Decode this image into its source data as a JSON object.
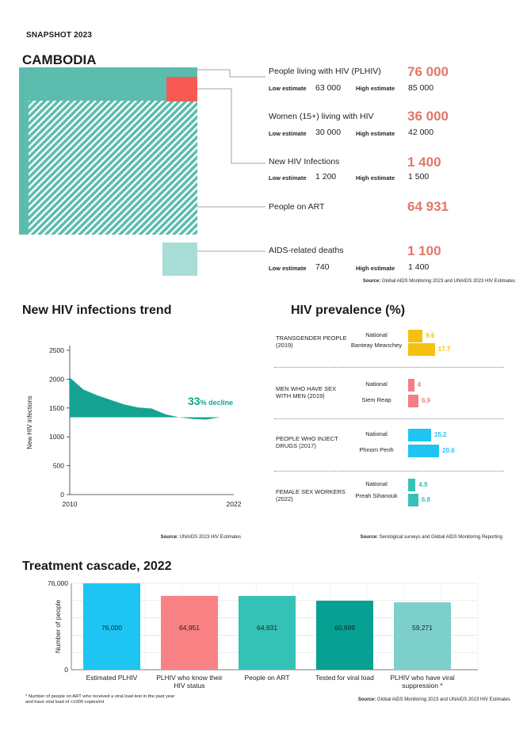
{
  "header": {
    "snapshot": "SNAPSHOT 2023",
    "country": "CAMBODIA"
  },
  "colors": {
    "teal": "#5cbcad",
    "teal_light": "#a7ddd5",
    "red_square": "#f75a55",
    "accent": "#e3776a",
    "yellow": "#f6c010",
    "pink": "#f57c84",
    "cyan": "#1ec5f2",
    "teal_mid": "#35c2b6",
    "cascade_pink": "#f78183",
    "cascade_dark": "#07a193",
    "cascade_light": "#7ccfcb"
  },
  "stats": {
    "plhiv": {
      "label": "People living with HIV (PLHIV)",
      "value": "76 000",
      "low_label": "Low estimate",
      "low": "63 000",
      "high_label": "High estimate",
      "high": "85 000"
    },
    "women": {
      "label": "Women (15+) living with HIV",
      "value": "36 000",
      "low_label": "Low estimate",
      "low": "30 000",
      "high_label": "High estimate",
      "high": "42 000"
    },
    "new_infections": {
      "label": "New HIV Infections",
      "value": "1 400",
      "low_label": "Low estimate",
      "low": "1 200",
      "high_label": "High estimate",
      "high": "1 500"
    },
    "art": {
      "label": "People on ART",
      "value": "64 931"
    },
    "deaths": {
      "label": "AIDS-related deaths",
      "value": "1 100",
      "low_label": "Low estimate",
      "low": "740",
      "high_label": "High estimate",
      "high": "1 400"
    },
    "source_label": "Source:",
    "source_text": "Global AIDS Monitoring 2023 and UNAIDS 2023 HIV Estimates"
  },
  "trend": {
    "title": "New HIV infections trend",
    "decline_value": "33",
    "decline_text": "% decline",
    "source_label": "Source:",
    "source_text": "UNAIDS 2023 HIV Estimates"
  },
  "prevalence": {
    "title": "HIV prevalence (%)",
    "source_label": "Source:",
    "source_text": "Serological surveys and Global AIDS Monitoring Reporting",
    "groups": [
      {
        "name": "TRANSGENDER PEOPLE (2019)",
        "rows": [
          {
            "sub": "National",
            "value": 9.6,
            "label": "9.6"
          },
          {
            "sub": "Banteay Meanchey",
            "value": 17.7,
            "label": "17.7"
          }
        ]
      },
      {
        "name": "MEN WHO HAVE SEX WITH MEN (2019)",
        "rows": [
          {
            "sub": "National",
            "value": 4,
            "label": "4"
          },
          {
            "sub": "Siem Reap",
            "value": 6.9,
            "label": "6.9"
          }
        ]
      },
      {
        "name": "PEOPLE WHO INJECT DRUGS (2017)",
        "rows": [
          {
            "sub": "National",
            "value": 15.2,
            "label": "15.2"
          },
          {
            "sub": "Phnom Penh",
            "value": 20.6,
            "label": "20.6"
          }
        ]
      },
      {
        "name": "FEMALE SEX WORKERS (2022)",
        "rows": [
          {
            "sub": "National",
            "value": 4.9,
            "label": "4.9"
          },
          {
            "sub": "Preah Sihanouk",
            "value": 6.8,
            "label": "6.8"
          }
        ]
      }
    ]
  },
  "cascade": {
    "title": "Treatment cascade, 2022",
    "footnote_line1": "* Number of people on ART who received a viral load test in the past year",
    "footnote_line2": "and have viral load of <1000 copies/ml",
    "source_label": "Source:",
    "source_text": "Global AIDS Monitoring 2023 and UNAIDS 2023 HIV Estimates"
  },
  "chart_data": [
    {
      "type": "area",
      "title": "New HIV infections trend",
      "xlabel": "",
      "ylabel": "New HIV infections",
      "x": [
        2010,
        2011,
        2012,
        2013,
        2014,
        2015,
        2016,
        2017,
        2018,
        2019,
        2020,
        2021,
        2022
      ],
      "values": [
        2030,
        1820,
        1720,
        1640,
        1560,
        1510,
        1490,
        1390,
        1340,
        1310,
        1300,
        1340,
        1340
      ],
      "xlim": [
        2010,
        2022
      ],
      "ylim": [
        0,
        2500
      ],
      "yticks": [
        0,
        500,
        1000,
        1500,
        2000,
        2500
      ],
      "xtick_labels": [
        "2010",
        "2022"
      ],
      "annotation": "33% decline"
    },
    {
      "type": "bar",
      "title": "HIV prevalence (%)",
      "categories": [
        "TRANSGENDER PEOPLE (2019) National",
        "TRANSGENDER PEOPLE (2019) Banteay Meanchey",
        "MEN WHO HAVE SEX WITH MEN (2019) National",
        "MEN WHO HAVE SEX WITH MEN (2019) Siem Reap",
        "PEOPLE WHO INJECT DRUGS (2017) National",
        "PEOPLE WHO INJECT DRUGS (2017) Phnom Penh",
        "FEMALE SEX WORKERS (2022) National",
        "FEMALE SEX WORKERS (2022) Preah Sihanouk"
      ],
      "values": [
        9.6,
        17.7,
        4,
        6.9,
        15.2,
        20.6,
        4.9,
        6.8
      ],
      "orientation": "horizontal"
    },
    {
      "type": "bar",
      "title": "Treatment cascade, 2022",
      "ylabel": "Number of people",
      "categories": [
        "Estimated PLHIV",
        "PLHIV who know their HIV status",
        "People on ART",
        "Tested for viral load",
        "PLHIV who have viral suppression *"
      ],
      "values": [
        76000,
        64951,
        64931,
        60699,
        59271
      ],
      "value_labels": [
        "76,000",
        "64,951",
        "64,931",
        "60,699",
        "59,271"
      ],
      "ylim": [
        0,
        76000
      ],
      "ytick_labels": [
        "0",
        "76,000"
      ]
    }
  ]
}
